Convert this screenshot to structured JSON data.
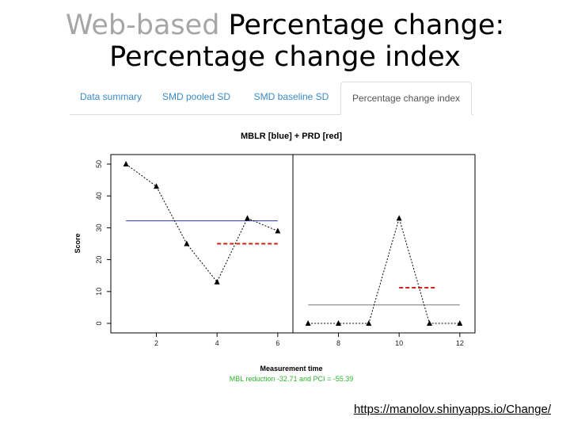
{
  "slide": {
    "title_part1": "Web-based",
    "title_part2": " Percentage change:",
    "title_line2": "Percentage change index",
    "url": "https://manolov.shinyapps.io/Change/"
  },
  "tabs": [
    {
      "label": "Data summary",
      "active": false
    },
    {
      "label": "SMD pooled SD",
      "active": false
    },
    {
      "label": "SMD baseline SD",
      "active": false
    },
    {
      "label": "Percentage change index",
      "active": true
    }
  ],
  "chart_data": {
    "type": "line",
    "title": "MBLR [blue] + PRD [red]",
    "xlabel": "Measurement time",
    "ylabel": "Score",
    "xlim": [
      0.5,
      12.5
    ],
    "ylim": [
      0,
      50
    ],
    "xticks": [
      2,
      4,
      6,
      8,
      10,
      12
    ],
    "yticks": [
      0,
      10,
      20,
      30,
      40,
      50
    ],
    "phase_change_x": 6.5,
    "series": [
      {
        "phase": "A",
        "x": [
          1,
          2,
          3,
          4,
          5,
          6
        ],
        "values": [
          50,
          43,
          25,
          13,
          33,
          29
        ]
      },
      {
        "phase": "B",
        "x": [
          7,
          8,
          9,
          10,
          11,
          12
        ],
        "values": [
          0,
          0,
          0,
          33,
          0,
          0
        ]
      }
    ],
    "reference_lines": [
      {
        "color": "#3b4fb0",
        "style": "solid",
        "x_start": 1,
        "x_end": 6,
        "y": 32.2
      },
      {
        "color": "#888888",
        "style": "solid",
        "x_start": 7,
        "x_end": 12,
        "y": 5.8
      },
      {
        "color": "#d11f1f",
        "style": "dashed",
        "x_start": 4,
        "x_end": 6,
        "y": 25
      },
      {
        "color": "#d11f1f",
        "style": "dashed",
        "x_start": 10,
        "x_end": 11.2,
        "y": 11.2
      }
    ],
    "caption": "MBL reduction -32.71 and PCI = -55.39",
    "caption_color": "#2db52d"
  }
}
